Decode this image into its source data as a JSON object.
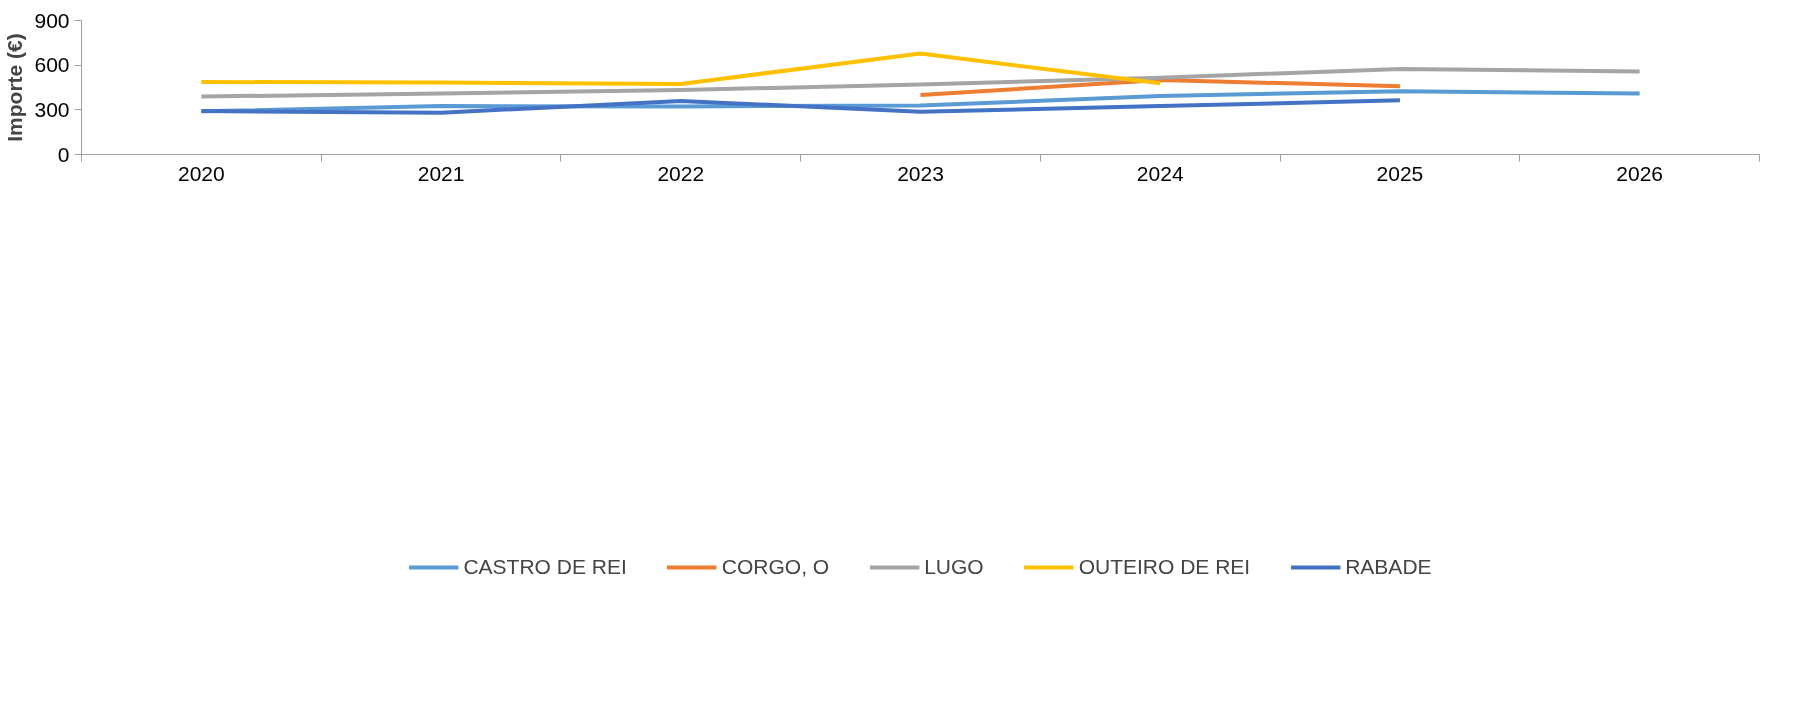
{
  "chart_data": {
    "type": "line",
    "ylabel": "Importe (€)",
    "categories": [
      "2020",
      "2021",
      "2022",
      "2023",
      "2024",
      "2025",
      "2026"
    ],
    "series": [
      {
        "name": "CASTRO DE REI",
        "color": "#5b9bd5",
        "values": [
          290,
          325,
          323,
          329,
          393,
          424,
          410
        ]
      },
      {
        "name": "CORGO, O",
        "color": "#ed7d31",
        "values": [
          null,
          null,
          null,
          400,
          500,
          459,
          null
        ]
      },
      {
        "name": "LUGO",
        "color": "#a5a5a5",
        "values": [
          389,
          410,
          433,
          470,
          516,
          575,
          558
        ]
      },
      {
        "name": "OUTEIRO DE REI",
        "color": "#ffc000",
        "values": [
          487,
          483,
          474,
          678,
          478,
          null,
          null
        ]
      },
      {
        "name": "RABADE",
        "color": "#4472c4",
        "values": [
          292,
          281,
          360,
          287,
          325,
          364,
          null
        ]
      }
    ],
    "ylim": [
      0,
      900
    ],
    "yticks": [
      0,
      300,
      600,
      900
    ],
    "grid": false,
    "legend": "bottom",
    "marker": "none",
    "line_style": "solid"
  }
}
